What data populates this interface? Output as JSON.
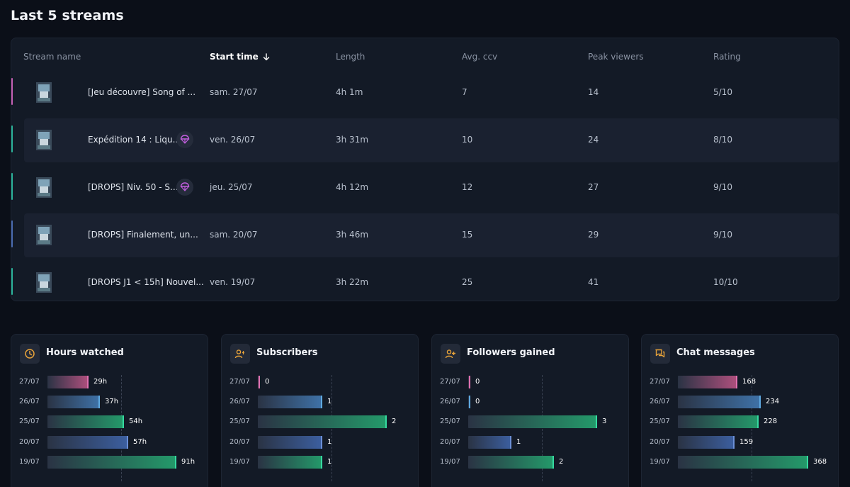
{
  "page": {
    "title": "Last 5 streams"
  },
  "table": {
    "columns": {
      "stream_name": "Stream name",
      "start_time": "Start time",
      "length": "Length",
      "avg_ccv": "Avg. ccv",
      "peak_viewers": "Peak viewers",
      "rating": "Rating"
    },
    "rows": [
      {
        "name": "[Jeu découvre] Song of ...",
        "start": "sam. 27/07",
        "length": "4h 1m",
        "avg_ccv": "7",
        "peak": "14",
        "rating": "5/10",
        "accent": "#c45fb3",
        "drops": false
      },
      {
        "name": "Expédition 14 : Liqu...",
        "start": "ven. 26/07",
        "length": "3h 31m",
        "avg_ccv": "10",
        "peak": "24",
        "rating": "8/10",
        "accent": "#2bb39a",
        "drops": true
      },
      {
        "name": "[DROPS] Niv. 50 - S...",
        "start": "jeu. 25/07",
        "length": "4h 12m",
        "avg_ccv": "12",
        "peak": "27",
        "rating": "9/10",
        "accent": "#2bb39a",
        "drops": true
      },
      {
        "name": "[DROPS] Finalement, un...",
        "start": "sam. 20/07",
        "length": "3h 46m",
        "avg_ccv": "15",
        "peak": "29",
        "rating": "9/10",
        "accent": "#4a6bb0",
        "drops": false
      },
      {
        "name": "[DROPS J1 < 15h] Nouvel...",
        "start": "ven. 19/07",
        "length": "3h 22m",
        "avg_ccv": "25",
        "peak": "41",
        "rating": "10/10",
        "accent": "#2bb39a",
        "drops": false
      }
    ]
  },
  "stats": [
    {
      "title": "Hours watched",
      "icon": "clock-icon",
      "max": 100,
      "rows": [
        {
          "date": "27/07",
          "label": "29h",
          "value": 29,
          "color": "#b0507e"
        },
        {
          "date": "26/07",
          "label": "37h",
          "value": 37,
          "color": "#3f72a8"
        },
        {
          "date": "25/07",
          "label": "54h",
          "value": 54,
          "color": "#249a6a"
        },
        {
          "date": "20/07",
          "label": "57h",
          "value": 57,
          "color": "#3c5fa0"
        },
        {
          "date": "19/07",
          "label": "91h",
          "value": 91,
          "color": "#249a6a"
        }
      ]
    },
    {
      "title": "Subscribers",
      "icon": "subscriber-icon",
      "max": 2.2,
      "rows": [
        {
          "date": "27/07",
          "label": "0",
          "value": 0,
          "color": "#b0507e"
        },
        {
          "date": "26/07",
          "label": "1",
          "value": 1,
          "color": "#3f72a8"
        },
        {
          "date": "25/07",
          "label": "2",
          "value": 2,
          "color": "#249a6a"
        },
        {
          "date": "20/07",
          "label": "1",
          "value": 1,
          "color": "#3c5fa0"
        },
        {
          "date": "19/07",
          "label": "1",
          "value": 1,
          "color": "#249a6a"
        }
      ]
    },
    {
      "title": "Followers gained",
      "icon": "add-user-icon",
      "max": 3.3,
      "rows": [
        {
          "date": "27/07",
          "label": "0",
          "value": 0,
          "color": "#b0507e"
        },
        {
          "date": "26/07",
          "label": "0",
          "value": 0,
          "color": "#3f72a8"
        },
        {
          "date": "25/07",
          "label": "3",
          "value": 3,
          "color": "#249a6a"
        },
        {
          "date": "20/07",
          "label": "1",
          "value": 1,
          "color": "#3c5fa0"
        },
        {
          "date": "19/07",
          "label": "2",
          "value": 2,
          "color": "#249a6a"
        }
      ]
    },
    {
      "title": "Chat messages",
      "icon": "chat-icon",
      "max": 400,
      "rows": [
        {
          "date": "27/07",
          "label": "168",
          "value": 168,
          "color": "#b0507e"
        },
        {
          "date": "26/07",
          "label": "234",
          "value": 234,
          "color": "#3f72a8"
        },
        {
          "date": "25/07",
          "label": "228",
          "value": 228,
          "color": "#249a6a"
        },
        {
          "date": "20/07",
          "label": "159",
          "value": 159,
          "color": "#3c5fa0"
        },
        {
          "date": "19/07",
          "label": "368",
          "value": 368,
          "color": "#249a6a"
        }
      ]
    }
  ]
}
